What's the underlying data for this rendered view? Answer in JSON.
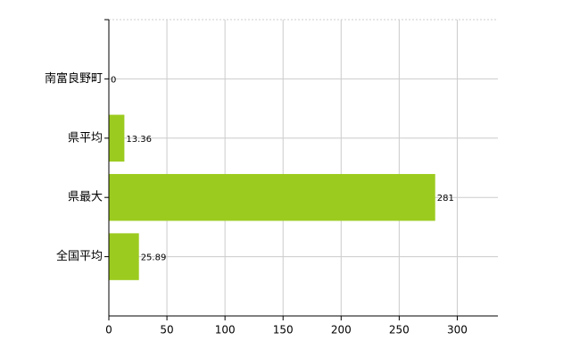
{
  "chart_data": {
    "type": "barh",
    "categories": [
      "南富良野町",
      "県平均",
      "県最大",
      "全国平均"
    ],
    "values": [
      0,
      13.36,
      281,
      25.89
    ],
    "color": "#9ccb1f",
    "xlim": [
      0,
      335
    ],
    "xticks": [
      0,
      50,
      100,
      150,
      200,
      250,
      300
    ],
    "grid": true
  }
}
